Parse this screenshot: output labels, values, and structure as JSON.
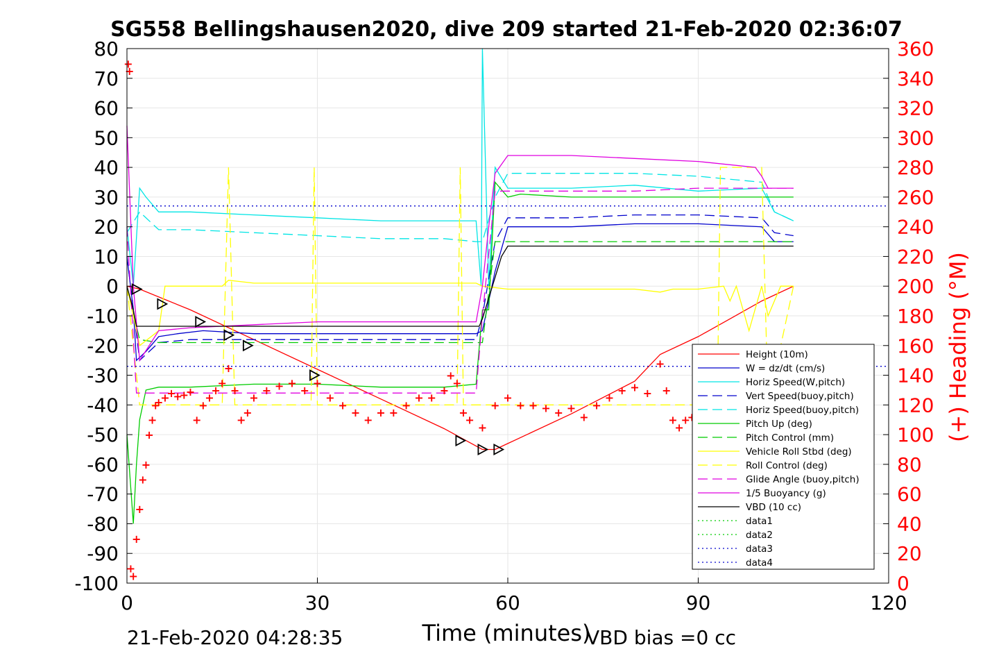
{
  "title": "SG558 Bellingshausen2020, dive 209 started 21-Feb-2020 02:36:07",
  "footer_left": "21-Feb-2020 04:28:35",
  "footer_right": "VBD bias =0 cc",
  "colors": {
    "red": "#ff0000",
    "blue": "#0000cc",
    "cyan": "#00e5e5",
    "green": "#00cc00",
    "yellow": "#ffff00",
    "magenta": "#e000e0",
    "black": "#000000"
  },
  "chart_data": {
    "type": "line",
    "title": "SG558 Bellingshausen2020, dive 209 started 21-Feb-2020 02:36:07",
    "xlabel": "Time (minutes)",
    "ylabel": "",
    "ylabel_right": "(+) Heading (°M)",
    "xlim": [
      0,
      120
    ],
    "ylim": [
      -100,
      80
    ],
    "ylim_right": [
      0,
      360
    ],
    "xticks": [
      0,
      30,
      60,
      90,
      120
    ],
    "yticks": [
      -100,
      -90,
      -80,
      -70,
      -60,
      -50,
      -40,
      -30,
      -20,
      -10,
      0,
      10,
      20,
      30,
      40,
      50,
      60,
      70,
      80
    ],
    "yticks_right": [
      0,
      20,
      40,
      60,
      80,
      100,
      120,
      140,
      160,
      180,
      200,
      220,
      240,
      260,
      280,
      300,
      320,
      340,
      360
    ],
    "grid": true,
    "legend_position": "lower-right",
    "series": [
      {
        "name": "Height (10m)",
        "color": "#ff0000",
        "dash": "solid",
        "x": [
          0,
          2,
          10,
          20,
          30,
          40,
          50,
          56,
          58,
          60,
          70,
          80,
          84,
          90,
          95,
          100,
          105
        ],
        "y": [
          0,
          -1,
          -8,
          -18,
          -28,
          -38,
          -48,
          -55,
          -55,
          -53,
          -43,
          -32,
          -23,
          -17,
          -11,
          -5,
          0
        ]
      },
      {
        "name": "W = dz/dt (cm/s)",
        "color": "#0000cc",
        "dash": "solid",
        "x": [
          0,
          1,
          1.5,
          3,
          5,
          8,
          12,
          20,
          30,
          40,
          50,
          55,
          56,
          57,
          58,
          60,
          62,
          70,
          80,
          90,
          100,
          102,
          105
        ],
        "y": [
          10,
          -8,
          -25,
          -22,
          -17,
          -16,
          -15,
          -16,
          -16,
          -16,
          -16,
          -16,
          -15,
          -5,
          5,
          20,
          20,
          20,
          21,
          21,
          20,
          15,
          15
        ]
      },
      {
        "name": "Horiz Speed(W,pitch)",
        "color": "#00e5e5",
        "dash": "solid",
        "x": [
          0,
          1,
          2,
          3,
          5,
          10,
          20,
          30,
          40,
          50,
          55,
          55.8,
          56,
          57,
          58,
          60,
          62,
          70,
          80,
          90,
          100,
          102,
          105
        ],
        "y": [
          20,
          0,
          33,
          30,
          25,
          25,
          24,
          23,
          22,
          22,
          22,
          0,
          80,
          0,
          40,
          33,
          33,
          33,
          34,
          32,
          33,
          25,
          22
        ]
      },
      {
        "name": "Vert Speed(buoy,pitch)",
        "color": "#0000cc",
        "dash": "dashed",
        "x": [
          0,
          2,
          5,
          10,
          20,
          30,
          40,
          50,
          55,
          56,
          58,
          60,
          70,
          80,
          90,
          100,
          102,
          105
        ],
        "y": [
          10,
          -25,
          -19,
          -18,
          -18,
          -18,
          -18,
          -18,
          -18,
          -10,
          15,
          23,
          23,
          24,
          24,
          23,
          18,
          17
        ]
      },
      {
        "name": "Horiz Speed(buoy,pitch)",
        "color": "#00e5e5",
        "dash": "dashed",
        "x": [
          0,
          2,
          5,
          10,
          20,
          30,
          40,
          50,
          55,
          56,
          58,
          60,
          70,
          80,
          90,
          100,
          102,
          105
        ],
        "y": [
          18,
          25,
          19,
          19,
          18,
          17,
          16,
          16,
          15,
          15,
          30,
          38,
          38,
          38,
          37,
          35,
          25,
          22
        ]
      },
      {
        "name": "Pitch Up (deg)",
        "color": "#00cc00",
        "dash": "solid",
        "x": [
          0,
          1,
          1.5,
          2,
          3,
          5,
          10,
          20,
          30,
          40,
          50,
          55,
          56,
          57,
          58,
          60,
          62,
          70,
          80,
          90,
          100,
          105
        ],
        "y": [
          -50,
          -80,
          -60,
          -45,
          -35,
          -34,
          -34,
          -33,
          -33,
          -34,
          -34,
          -33,
          -8,
          -8,
          35,
          30,
          31,
          30,
          30,
          30,
          30,
          30
        ]
      },
      {
        "name": "Pitch Control (mm)",
        "color": "#00cc00",
        "dash": "dashed",
        "x": [
          0,
          2,
          5,
          10,
          20,
          30,
          40,
          50,
          55,
          56,
          58,
          60,
          70,
          80,
          90,
          100,
          105
        ],
        "y": [
          0,
          -18,
          -19,
          -19,
          -19,
          -19,
          -19,
          -19,
          -19,
          -19,
          15,
          15,
          15,
          15,
          15,
          15,
          15
        ]
      },
      {
        "name": "Vehicle Roll Stbd (deg)",
        "color": "#ffff00",
        "dash": "solid",
        "x": [
          0,
          2,
          5,
          6,
          10,
          15,
          16,
          20,
          30,
          40,
          50,
          55,
          56,
          60,
          70,
          80,
          84,
          86,
          90,
          94,
          95,
          96,
          98,
          100,
          101,
          103,
          105
        ],
        "y": [
          0,
          -20,
          -15,
          0,
          0,
          0,
          2,
          1,
          1,
          1,
          1,
          1,
          0,
          -1,
          -1,
          -1,
          -2,
          -1,
          -1,
          0,
          -5,
          0,
          -15,
          0,
          -10,
          0,
          0
        ]
      },
      {
        "name": "Roll Control (deg)",
        "color": "#ffff00",
        "dash": "dashed",
        "x": [
          0,
          2,
          4,
          15,
          16,
          17,
          18,
          29,
          29.5,
          30,
          40,
          52,
          52.5,
          53,
          56,
          60,
          90,
          93,
          93.5,
          100,
          101,
          105
        ],
        "y": [
          0,
          -40,
          -40,
          -40,
          40,
          -40,
          -40,
          -40,
          40,
          -40,
          -40,
          -40,
          40,
          -40,
          -40,
          -40,
          -40,
          -40,
          40,
          40,
          -40,
          0
        ]
      },
      {
        "name": "Glide Angle (buoy,pitch)",
        "color": "#e000e0",
        "dash": "dashed",
        "x": [
          0,
          1.5,
          3,
          5,
          10,
          20,
          30,
          40,
          50,
          55,
          56,
          58,
          60,
          70,
          80,
          90,
          100,
          105
        ],
        "y": [
          20,
          -36,
          -36,
          -36,
          -36,
          -36,
          -36,
          -36,
          -36,
          -36,
          -10,
          32,
          32,
          32,
          32,
          33,
          33,
          33
        ]
      },
      {
        "name": "1/5 Buoyancy (g)",
        "color": "#e000e0",
        "dash": "solid",
        "x": [
          0,
          1,
          2,
          5,
          10,
          20,
          30,
          40,
          50,
          55,
          56,
          57,
          58,
          60,
          70,
          80,
          90,
          99,
          100,
          101,
          105
        ],
        "y": [
          54,
          0,
          -25,
          -15,
          -14,
          -13,
          -12,
          -12,
          -12,
          -12,
          0,
          20,
          38,
          44,
          44,
          43,
          42,
          40,
          37,
          33,
          33
        ]
      },
      {
        "name": "VBD (10 cc)",
        "color": "#000000",
        "dash": "solid",
        "x": [
          0,
          1,
          1.5,
          5,
          10,
          20,
          30,
          40,
          50,
          55.5,
          56,
          59,
          60,
          70,
          80,
          90,
          100,
          105
        ],
        "y": [
          0,
          -8,
          -13.5,
          -13.5,
          -13.5,
          -13.5,
          -13.5,
          -13.5,
          -13.5,
          -13.5,
          -11,
          10,
          13.5,
          13.5,
          13.5,
          13.5,
          13.5,
          13.5
        ]
      },
      {
        "name": "data1",
        "color": "#00cc00",
        "dash": "dotted",
        "x": [],
        "y": []
      },
      {
        "name": "data2",
        "color": "#00cc00",
        "dash": "dotted",
        "x": [],
        "y": []
      },
      {
        "name": "data3",
        "color": "#0000cc",
        "dash": "dotted",
        "x": [
          0,
          120
        ],
        "y": [
          27,
          27
        ]
      },
      {
        "name": "data4",
        "color": "#0000cc",
        "dash": "dotted",
        "x": [
          0,
          120
        ],
        "y": [
          -27,
          -27
        ]
      }
    ],
    "heading_series": {
      "name": "Heading",
      "color": "#ff0000",
      "marker": "+",
      "axis": "right",
      "x": [
        0.2,
        0.4,
        0.6,
        1.0,
        1.5,
        2.0,
        2.5,
        3.0,
        3.5,
        4.0,
        4.5,
        5.0,
        6,
        7,
        8,
        9,
        10,
        11,
        12,
        13,
        14,
        15,
        16,
        17,
        18,
        19,
        20,
        22,
        24,
        26,
        28,
        30,
        32,
        34,
        36,
        38,
        40,
        42,
        44,
        46,
        48,
        50,
        51,
        52,
        53,
        54,
        56,
        58,
        60,
        62,
        64,
        66,
        68,
        70,
        72,
        74,
        76,
        78,
        80,
        82,
        84,
        85,
        86,
        87,
        88,
        89,
        90
      ],
      "y": [
        350,
        345,
        10,
        5,
        30,
        50,
        70,
        80,
        100,
        110,
        120,
        122,
        125,
        128,
        126,
        127,
        129,
        110,
        120,
        125,
        130,
        135,
        145,
        130,
        110,
        115,
        125,
        130,
        133,
        135,
        130,
        135,
        125,
        120,
        115,
        110,
        115,
        115,
        120,
        125,
        125,
        130,
        140,
        135,
        115,
        110,
        105,
        120,
        125,
        120,
        120,
        118,
        115,
        118,
        112,
        120,
        125,
        130,
        132,
        128,
        148,
        130,
        110,
        105,
        110,
        112,
        120
      ]
    },
    "dive_markers": {
      "name": "markers",
      "color": "#000000",
      "x": [
        1.5,
        5.5,
        11.5,
        16,
        19,
        29.5,
        52.5,
        56,
        58.5
      ],
      "y": [
        -1,
        -6,
        -12,
        -16.5,
        -20,
        -30,
        -52,
        -55,
        -55
      ]
    }
  }
}
